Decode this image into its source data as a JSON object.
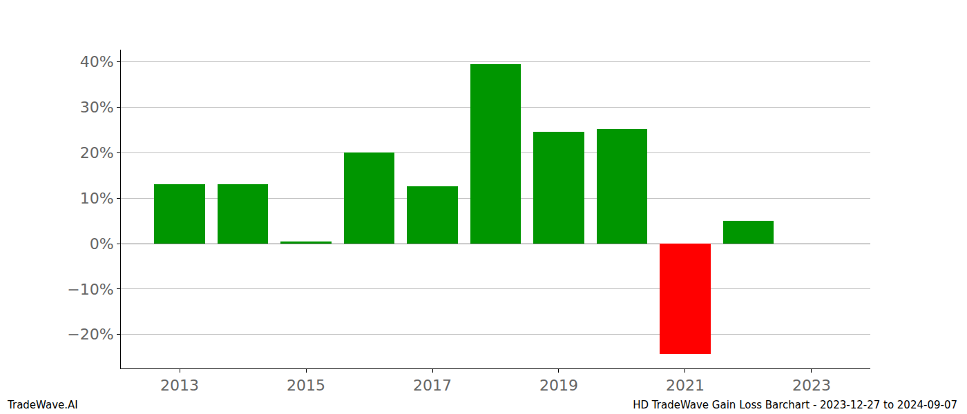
{
  "chart_data": {
    "type": "bar",
    "title": "HD TradeWave Gain Loss Barchart - 2023-12-27 to 2024-09-07",
    "annotations": [
      "TradeWave.AI"
    ],
    "x": [
      2013,
      2014,
      2015,
      2016,
      2017,
      2018,
      2019,
      2020,
      2021,
      2022
    ],
    "values": [
      13.1,
      13.1,
      0.5,
      20.1,
      12.6,
      39.5,
      24.6,
      25.2,
      -24.3,
      5.0
    ],
    "colors": [
      "#009600",
      "#009600",
      "#009600",
      "#009600",
      "#009600",
      "#009600",
      "#009600",
      "#009600",
      "#ff0000",
      "#009600"
    ],
    "xlim": [
      2012.07,
      2023.93
    ],
    "xticks": [
      2013,
      2015,
      2017,
      2019,
      2021,
      2023
    ],
    "ylim": [
      -27.5,
      42.7
    ],
    "yticks": [
      {
        "value": -20,
        "label": "−20%"
      },
      {
        "value": -10,
        "label": "−10%"
      },
      {
        "value": 0,
        "label": "0%"
      },
      {
        "value": 10,
        "label": "10%"
      },
      {
        "value": 20,
        "label": "20%"
      },
      {
        "value": 30,
        "label": "30%"
      },
      {
        "value": 40,
        "label": "40%"
      }
    ],
    "grid": true
  }
}
